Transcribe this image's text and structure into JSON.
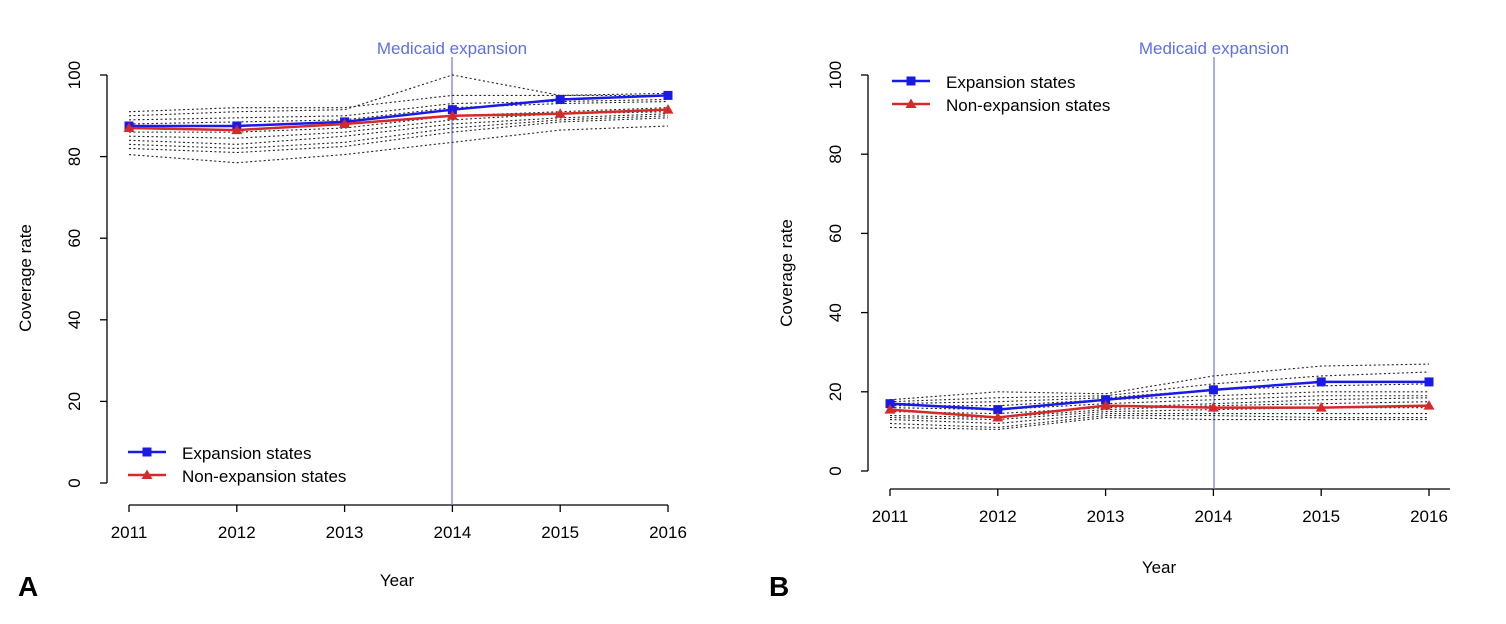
{
  "chart_data": [
    {
      "panel": "A",
      "type": "line",
      "xlabel": "Year",
      "ylabel": "Coverage rate",
      "x": [
        2011,
        2012,
        2013,
        2014,
        2015,
        2016
      ],
      "xlim": [
        2011,
        2016
      ],
      "ylim": [
        0,
        100
      ],
      "yticks": [
        0,
        20,
        40,
        60,
        80,
        100
      ],
      "grid": false,
      "legend_position": "bottom-left",
      "reference_line": {
        "x": 2014,
        "label": "Medicaid expansion",
        "color": "#5f6fe8"
      },
      "series": [
        {
          "name": "Expansion states",
          "color": "#1a1ae6",
          "marker": "square",
          "values": [
            87.5,
            87.5,
            88.5,
            91.5,
            94,
            95
          ]
        },
        {
          "name": "Non-expansion states",
          "color": "#d42a2a",
          "marker": "triangle",
          "values": [
            87,
            86.5,
            88,
            90,
            90.5,
            91.5
          ]
        }
      ],
      "dotted_lines": [
        [
          91,
          92,
          92,
          95,
          95,
          95
        ],
        [
          90,
          91,
          91.5,
          100,
          95,
          95.5
        ],
        [
          89,
          89.5,
          90,
          93,
          93.5,
          94
        ],
        [
          88,
          88.5,
          89,
          92,
          93,
          93.5
        ],
        [
          86,
          86,
          87,
          90,
          91,
          92
        ],
        [
          85,
          84.5,
          86,
          89,
          90.5,
          91
        ],
        [
          84,
          83,
          85,
          88,
          89.5,
          90.5
        ],
        [
          83,
          82,
          83.5,
          87,
          89,
          90
        ],
        [
          82,
          81,
          82.5,
          86,
          88.5,
          89.5
        ],
        [
          80.5,
          78.5,
          80.5,
          83.5,
          86.5,
          87.5
        ]
      ]
    },
    {
      "panel": "B",
      "type": "line",
      "xlabel": "Year",
      "ylabel": "Coverage rate",
      "x": [
        2011,
        2012,
        2013,
        2014,
        2015,
        2016
      ],
      "xlim": [
        2011,
        2016
      ],
      "ylim": [
        0,
        100
      ],
      "yticks": [
        0,
        20,
        40,
        60,
        80,
        100
      ],
      "grid": false,
      "legend_position": "top-left",
      "reference_line": {
        "x": 2014,
        "label": "Medicaid expansion",
        "color": "#5f6fe8"
      },
      "series": [
        {
          "name": "Expansion states",
          "color": "#1a1ae6",
          "marker": "square",
          "values": [
            17,
            15.5,
            18,
            20.5,
            22.5,
            22.5
          ]
        },
        {
          "name": "Non-expansion states",
          "color": "#d42a2a",
          "marker": "triangle",
          "values": [
            15.5,
            13.5,
            16.5,
            16,
            16,
            16.5
          ]
        }
      ],
      "dotted_lines": [
        [
          18,
          20,
          19.5,
          24,
          26.5,
          27
        ],
        [
          17.5,
          18.5,
          19,
          22,
          24,
          25
        ],
        [
          17,
          17.5,
          18.5,
          20.5,
          21.5,
          22
        ],
        [
          16.5,
          16.5,
          18,
          19,
          20,
          20
        ],
        [
          16,
          15.5,
          17,
          18,
          19,
          19
        ],
        [
          15,
          14.5,
          16,
          17,
          18,
          18.5
        ],
        [
          14,
          13.5,
          15.5,
          16.5,
          17,
          17.5
        ],
        [
          13.5,
          13,
          15,
          15.5,
          16,
          16
        ],
        [
          13,
          12,
          14.5,
          14.5,
          14.5,
          14.5
        ],
        [
          12,
          11,
          14,
          14,
          13.5,
          13.5
        ],
        [
          11,
          10.5,
          13.5,
          13,
          13,
          13
        ]
      ]
    }
  ]
}
